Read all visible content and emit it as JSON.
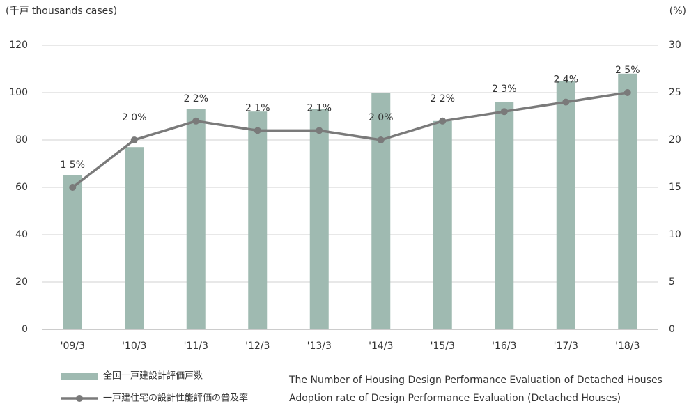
{
  "chart_data": {
    "type": "bar",
    "y_label": "(千戸 thousands cases)",
    "y2_label": "(%)",
    "categories": [
      "'09/3",
      "'10/3",
      "'11/3",
      "'12/3",
      "'13/3",
      "'14/3",
      "'15/3",
      "'16/3",
      "'17/3",
      "'18/3"
    ],
    "series": [
      {
        "name": "全国一戸建設計評価戸数",
        "type": "bar",
        "color": "#9fbab1",
        "values": [
          65,
          77,
          93,
          92,
          93,
          100,
          88,
          96,
          105,
          108
        ]
      },
      {
        "name": "一戸建住宅の設計性能評価の普及率",
        "type": "line",
        "axis": "y2",
        "color": "#7a7a7a",
        "values": [
          15,
          20,
          22,
          21,
          21,
          20,
          22,
          23,
          24,
          25
        ],
        "value_labels": [
          "1 5%",
          "2 0%",
          "2 2%",
          "2 1%",
          "2 1%",
          "2 0%",
          "2 2%",
          "2 3%",
          "2 4%",
          "2 5%"
        ]
      }
    ],
    "legend_notes": [
      "The Number of Housing Design Performance Evaluation of Detached Houses",
      "Adoption rate of Design Performance Evaluation (Detached Houses)"
    ],
    "ylim": [
      0,
      120
    ],
    "yticks": [
      0,
      20,
      40,
      60,
      80,
      100,
      120
    ],
    "y2lim": [
      0,
      30
    ],
    "y2ticks": [
      0,
      5,
      10,
      15,
      20,
      25,
      30
    ],
    "grid": true
  }
}
